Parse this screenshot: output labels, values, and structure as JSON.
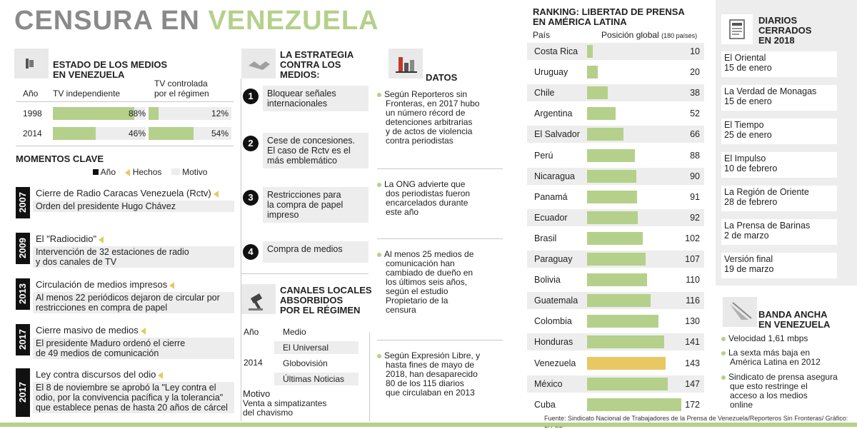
{
  "title": {
    "part1": "CENSURA EN",
    "part2": "VENEZUELA"
  },
  "estado": {
    "heading": [
      "ESTADO DE LOS MEDIOS",
      "EN VENEZUELA"
    ],
    "col_year": "Año",
    "col_tv_ind": "TV independiente",
    "col_tv_ctrl": [
      "TV controlada",
      "por el régimen"
    ],
    "rows": [
      {
        "year": "1998",
        "ind": 88,
        "ind_label": "88%",
        "ctrl": 12,
        "ctrl_label": "12%"
      },
      {
        "year": "2014",
        "ind": 46,
        "ind_label": "46%",
        "ctrl": 54,
        "ctrl_label": "54%"
      }
    ]
  },
  "momentos": {
    "heading": "MOMENTOS CLAVE",
    "legend": {
      "anio": "Año",
      "hechos": "Hechos",
      "motivo": "Motivo"
    },
    "items": [
      {
        "year": "2007",
        "hecho": "Cierre de Radio Caracas Venezuela (Rctv)",
        "motivo": [
          "Orden del presidente Hugo Chávez"
        ]
      },
      {
        "year": "2009",
        "hecho": "El \"Radiocidio\"",
        "motivo": [
          "Intervención de 32 estaciones de radio",
          "y dos canales de TV"
        ]
      },
      {
        "year": "2013",
        "hecho": "Circulación de medios impresos",
        "motivo": [
          "Al menos 22 periódicos dejaron de circular por",
          "restricciones en compra de papel"
        ]
      },
      {
        "year": "2017",
        "hecho": "Cierre masivo de medios",
        "motivo": [
          "El presidente Maduro ordenó el cierre",
          "de 49 medios de comunicación"
        ]
      },
      {
        "year": "2017",
        "hecho": "Ley contra discursos del odio",
        "motivo": [
          "El 8 de noviembre se aprobó la \"Ley contra el",
          "odio, por la convivencia pacífica y la tolerancia\"",
          "que establece penas de hasta 20 años de cárcel"
        ]
      }
    ]
  },
  "estrategia": {
    "heading": [
      "LA ESTRATEGIA",
      "CONTRA LOS",
      "MEDIOS:"
    ],
    "items": [
      {
        "n": "1",
        "text": [
          "Bloquear señales",
          "internacionales"
        ]
      },
      {
        "n": "2",
        "text": [
          "Cese de concesiones.",
          "El caso de Rctv es el",
          "más emblemático"
        ]
      },
      {
        "n": "3",
        "text": [
          "Restricciones para",
          "la compra de papel",
          "impreso"
        ]
      },
      {
        "n": "4",
        "text": [
          "Compra de medios"
        ]
      }
    ]
  },
  "canales": {
    "heading": [
      "CANALES LOCALES",
      "ABSORBIDOS",
      "POR EL RÉGIMEN"
    ],
    "col_year": "Año",
    "col_medio": "Medio",
    "year": "2014",
    "medios": [
      "El Universal",
      "Globovisión",
      "Últimas Noticias"
    ],
    "motivo_label": "Motivo",
    "motivo_text": [
      "Venta a simpatizantes",
      "del chavismo"
    ]
  },
  "datos": {
    "heading": "DATOS",
    "items": [
      [
        "Según Reporteros sin",
        "Fronteras, en 2017 hubo",
        "un número récord de",
        "detenciones arbitrarias",
        "y de actos de violencia",
        "contra periodistas"
      ],
      [
        "La ONG advierte que",
        "dos periodistas fueron",
        "encarcelados durante",
        "este año"
      ],
      [
        "Al menos 25 medios de",
        "comunicación han",
        "cambiado de dueño en",
        "los últimos seis años,",
        "según el estudio",
        "Propietario de la",
        "censura"
      ],
      [
        "Según Expresión Libre, y",
        "hasta fines de mayo de",
        "2018, han desaparecido",
        "80 de los 115 diarios",
        "que circulaban en 2013"
      ]
    ]
  },
  "ranking": {
    "heading": [
      "RANKING: LIBERTAD DE PRENSA",
      "EN AMÉRICA LATINA"
    ],
    "col_pais": "País",
    "col_pos": "Posición global",
    "col_pos_note": "(180 países)",
    "highlight": "Venezuela",
    "colors": {
      "bar": "#b5d08b",
      "highlight": "#e8c862"
    },
    "rows": [
      {
        "pais": "Costa Rica",
        "pos": 10
      },
      {
        "pais": "Uruguay",
        "pos": 20
      },
      {
        "pais": "Chile",
        "pos": 38
      },
      {
        "pais": "Argentina",
        "pos": 52
      },
      {
        "pais": "El Salvador",
        "pos": 66
      },
      {
        "pais": "Perú",
        "pos": 88
      },
      {
        "pais": "Nicaragua",
        "pos": 90
      },
      {
        "pais": "Panamá",
        "pos": 91
      },
      {
        "pais": "Ecuador",
        "pos": 92
      },
      {
        "pais": "Brasil",
        "pos": 102
      },
      {
        "pais": "Paraguay",
        "pos": 107
      },
      {
        "pais": "Bolivia",
        "pos": 110
      },
      {
        "pais": "Guatemala",
        "pos": 116
      },
      {
        "pais": "Colombia",
        "pos": 130
      },
      {
        "pais": "Honduras",
        "pos": 141
      },
      {
        "pais": "Venezuela",
        "pos": 143
      },
      {
        "pais": "México",
        "pos": 147
      },
      {
        "pais": "Cuba",
        "pos": 172
      }
    ]
  },
  "diarios": {
    "heading": [
      "DIARIOS",
      "CERRADOS",
      "EN 2018"
    ],
    "items": [
      {
        "name": "El Oriental",
        "date": "15 de enero"
      },
      {
        "name": "La Verdad de Monagas",
        "date": "15 de enero"
      },
      {
        "name": "El Tiempo",
        "date": "25 de enero"
      },
      {
        "name": "El Impulso",
        "date": "10 de febrero"
      },
      {
        "name": "La Región de Oriente",
        "date": "28 de febrero"
      },
      {
        "name": "La Prensa de Barinas",
        "date": "2 de marzo"
      },
      {
        "name": "Versión final",
        "date": "19 de marzo"
      }
    ]
  },
  "banda": {
    "heading": [
      "BANDA ANCHA",
      "EN VENEZUELA"
    ],
    "items": [
      [
        "Velocidad 1,61 mbps"
      ],
      [
        "La sexta más baja en",
        "América Latina en 2012"
      ],
      [
        "Sindicato de prensa asegura",
        "que esto restringe el",
        "acceso a los medios",
        "online"
      ]
    ]
  },
  "source": "Fuente:  Sindicato Nacional de Trabajadores de la Prensa de Venezuela/Reporteros Sin Fronteras/ Gráfico: LR-SB"
}
